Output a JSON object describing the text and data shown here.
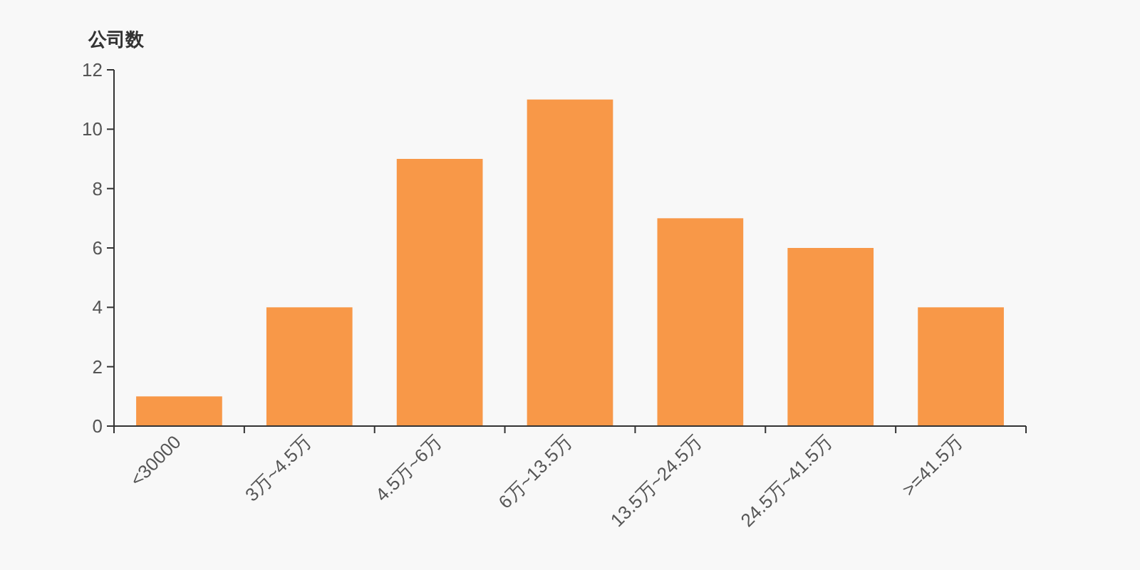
{
  "chart_data": {
    "type": "bar",
    "ylabel": "公司数",
    "categories": [
      "<30000",
      "3万~4.5万",
      "4.5万~6万",
      "6万~13.5万",
      "13.5万~24.5万",
      "24.5万~41.5万",
      ">=41.5万"
    ],
    "values": [
      1,
      4,
      9,
      11,
      7,
      6,
      4
    ],
    "color": "#f89848",
    "ylim": [
      0,
      12
    ],
    "yticks": [
      0,
      2,
      4,
      6,
      8,
      10,
      12
    ]
  }
}
